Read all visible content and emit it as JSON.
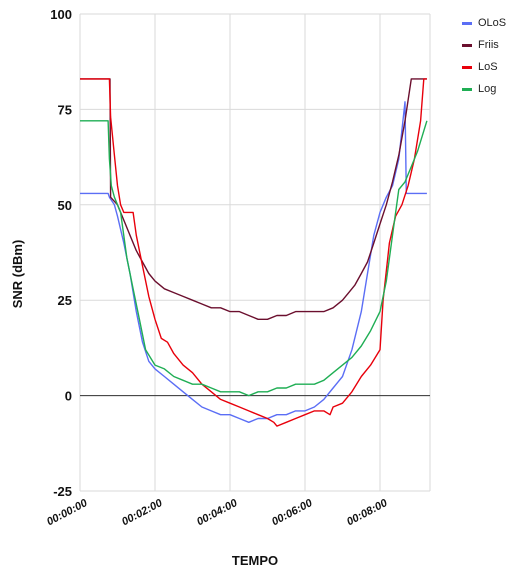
{
  "chart_data": {
    "type": "line",
    "title": "",
    "xlabel": "TEMPO",
    "ylabel": "SNR (dBm)",
    "ylim": [
      -25,
      100
    ],
    "yticks": [
      "100",
      "75",
      "50",
      "25",
      "0",
      "-25"
    ],
    "xlim_seconds": [
      0,
      560
    ],
    "xticks": [
      "00:00:00",
      "00:02:00",
      "00:04:00",
      "00:06:00",
      "00:08:00"
    ],
    "grid": true,
    "legend_position": "right",
    "series": [
      {
        "name": "OLoS",
        "color": "#5b6ef5",
        "points": [
          [
            "00:00:00",
            53
          ],
          [
            "00:00:45",
            53
          ],
          [
            "00:00:47",
            52
          ],
          [
            "00:00:55",
            50
          ],
          [
            "00:01:00",
            47
          ],
          [
            "00:01:10",
            40
          ],
          [
            "00:01:20",
            32
          ],
          [
            "00:01:30",
            22
          ],
          [
            "00:01:40",
            14
          ],
          [
            "00:01:50",
            9
          ],
          [
            "00:02:00",
            7
          ],
          [
            "00:02:15",
            5
          ],
          [
            "00:02:30",
            3
          ],
          [
            "00:02:45",
            1
          ],
          [
            "00:03:00",
            -1
          ],
          [
            "00:03:15",
            -3
          ],
          [
            "00:03:30",
            -4
          ],
          [
            "00:03:45",
            -5
          ],
          [
            "00:04:00",
            -5
          ],
          [
            "00:04:15",
            -6
          ],
          [
            "00:04:30",
            -7
          ],
          [
            "00:04:45",
            -6
          ],
          [
            "00:05:00",
            -6
          ],
          [
            "00:05:15",
            -5
          ],
          [
            "00:05:30",
            -5
          ],
          [
            "00:05:45",
            -4
          ],
          [
            "00:06:00",
            -4
          ],
          [
            "00:06:15",
            -3
          ],
          [
            "00:06:30",
            -1
          ],
          [
            "00:06:45",
            2
          ],
          [
            "00:07:00",
            5
          ],
          [
            "00:07:15",
            12
          ],
          [
            "00:07:30",
            22
          ],
          [
            "00:07:40",
            32
          ],
          [
            "00:07:50",
            42
          ],
          [
            "00:08:00",
            48
          ],
          [
            "00:08:10",
            52
          ],
          [
            "00:08:20",
            55
          ],
          [
            "00:08:30",
            62
          ],
          [
            "00:08:40",
            77
          ],
          [
            "00:08:42",
            53
          ],
          [
            "00:09:15",
            53
          ]
        ]
      },
      {
        "name": "Friis",
        "color": "#6b0f2e",
        "points": [
          [
            "00:00:00",
            83
          ],
          [
            "00:00:48",
            83
          ],
          [
            "00:00:49",
            52
          ],
          [
            "00:01:00",
            50
          ],
          [
            "00:01:10",
            46
          ],
          [
            "00:01:20",
            42
          ],
          [
            "00:01:30",
            38
          ],
          [
            "00:01:40",
            35
          ],
          [
            "00:01:50",
            32
          ],
          [
            "00:02:00",
            30
          ],
          [
            "00:02:15",
            28
          ],
          [
            "00:02:30",
            27
          ],
          [
            "00:02:45",
            26
          ],
          [
            "00:03:00",
            25
          ],
          [
            "00:03:15",
            24
          ],
          [
            "00:03:30",
            23
          ],
          [
            "00:03:45",
            23
          ],
          [
            "00:04:00",
            22
          ],
          [
            "00:04:15",
            22
          ],
          [
            "00:04:30",
            21
          ],
          [
            "00:04:45",
            20
          ],
          [
            "00:05:00",
            20
          ],
          [
            "00:05:15",
            21
          ],
          [
            "00:05:30",
            21
          ],
          [
            "00:05:45",
            22
          ],
          [
            "00:06:00",
            22
          ],
          [
            "00:06:15",
            22
          ],
          [
            "00:06:30",
            22
          ],
          [
            "00:06:45",
            23
          ],
          [
            "00:07:00",
            25
          ],
          [
            "00:07:10",
            27
          ],
          [
            "00:07:20",
            29
          ],
          [
            "00:07:30",
            32
          ],
          [
            "00:07:40",
            35
          ],
          [
            "00:07:50",
            40
          ],
          [
            "00:08:00",
            45
          ],
          [
            "00:08:10",
            50
          ],
          [
            "00:08:20",
            56
          ],
          [
            "00:08:30",
            63
          ],
          [
            "00:08:40",
            72
          ],
          [
            "00:08:50",
            83
          ],
          [
            "00:09:15",
            83
          ]
        ]
      },
      {
        "name": "LoS",
        "color": "#e8000b",
        "points": [
          [
            "00:00:00",
            83
          ],
          [
            "00:00:47",
            83
          ],
          [
            "00:00:49",
            73
          ],
          [
            "00:00:55",
            63
          ],
          [
            "00:01:00",
            55
          ],
          [
            "00:01:05",
            50
          ],
          [
            "00:01:10",
            48
          ],
          [
            "00:01:25",
            48
          ],
          [
            "00:01:30",
            42
          ],
          [
            "00:01:40",
            34
          ],
          [
            "00:01:50",
            26
          ],
          [
            "00:02:00",
            20
          ],
          [
            "00:02:10",
            15
          ],
          [
            "00:02:20",
            14
          ],
          [
            "00:02:30",
            11
          ],
          [
            "00:02:45",
            8
          ],
          [
            "00:03:00",
            6
          ],
          [
            "00:03:15",
            3
          ],
          [
            "00:03:30",
            1
          ],
          [
            "00:03:45",
            -1
          ],
          [
            "00:04:00",
            -2
          ],
          [
            "00:04:15",
            -3
          ],
          [
            "00:04:30",
            -4
          ],
          [
            "00:04:45",
            -5
          ],
          [
            "00:05:00",
            -6
          ],
          [
            "00:05:10",
            -7
          ],
          [
            "00:05:15",
            -8
          ],
          [
            "00:05:30",
            -7
          ],
          [
            "00:05:45",
            -6
          ],
          [
            "00:06:00",
            -5
          ],
          [
            "00:06:15",
            -4
          ],
          [
            "00:06:30",
            -4
          ],
          [
            "00:06:40",
            -5
          ],
          [
            "00:06:45",
            -3
          ],
          [
            "00:07:00",
            -2
          ],
          [
            "00:07:15",
            1
          ],
          [
            "00:07:30",
            5
          ],
          [
            "00:07:45",
            8
          ],
          [
            "00:08:00",
            12
          ],
          [
            "00:08:05",
            25
          ],
          [
            "00:08:15",
            40
          ],
          [
            "00:08:25",
            47
          ],
          [
            "00:08:35",
            50
          ],
          [
            "00:08:45",
            55
          ],
          [
            "00:08:55",
            62
          ],
          [
            "00:09:05",
            72
          ],
          [
            "00:09:10",
            83
          ],
          [
            "00:09:15",
            83
          ]
        ]
      },
      {
        "name": "Log",
        "color": "#1fae54",
        "points": [
          [
            "00:00:00",
            72
          ],
          [
            "00:00:45",
            72
          ],
          [
            "00:00:47",
            62
          ],
          [
            "00:00:50",
            55
          ],
          [
            "00:00:55",
            52
          ],
          [
            "00:01:05",
            48
          ],
          [
            "00:01:15",
            36
          ],
          [
            "00:01:25",
            28
          ],
          [
            "00:01:35",
            20
          ],
          [
            "00:01:45",
            12
          ],
          [
            "00:02:00",
            8
          ],
          [
            "00:02:15",
            7
          ],
          [
            "00:02:30",
            5
          ],
          [
            "00:02:45",
            4
          ],
          [
            "00:03:00",
            3
          ],
          [
            "00:03:15",
            3
          ],
          [
            "00:03:30",
            2
          ],
          [
            "00:03:45",
            1
          ],
          [
            "00:04:00",
            1
          ],
          [
            "00:04:15",
            1
          ],
          [
            "00:04:30",
            0
          ],
          [
            "00:04:45",
            1
          ],
          [
            "00:05:00",
            1
          ],
          [
            "00:05:15",
            2
          ],
          [
            "00:05:30",
            2
          ],
          [
            "00:05:45",
            3
          ],
          [
            "00:06:00",
            3
          ],
          [
            "00:06:15",
            3
          ],
          [
            "00:06:30",
            4
          ],
          [
            "00:06:45",
            6
          ],
          [
            "00:07:00",
            8
          ],
          [
            "00:07:15",
            10
          ],
          [
            "00:07:30",
            13
          ],
          [
            "00:07:45",
            17
          ],
          [
            "00:08:00",
            22
          ],
          [
            "00:08:10",
            30
          ],
          [
            "00:08:20",
            42
          ],
          [
            "00:08:30",
            54
          ],
          [
            "00:08:40",
            56
          ],
          [
            "00:08:50",
            60
          ],
          [
            "00:09:00",
            64
          ],
          [
            "00:09:15",
            72
          ]
        ]
      }
    ]
  }
}
